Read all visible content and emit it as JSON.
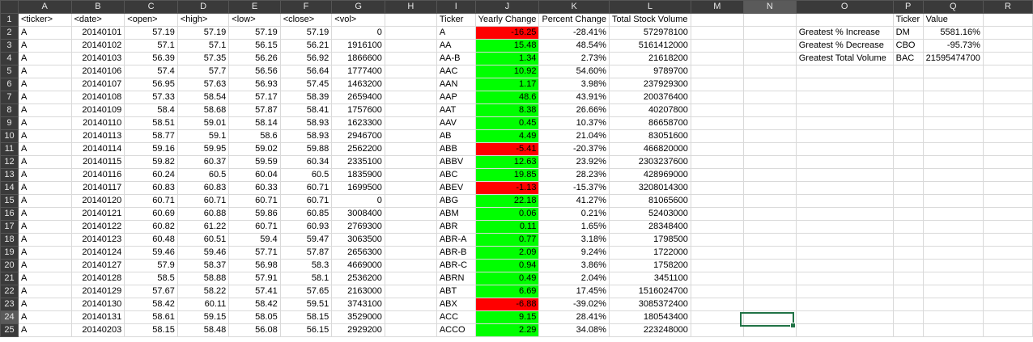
{
  "columns": [
    "A",
    "B",
    "C",
    "D",
    "E",
    "F",
    "G",
    "H",
    "I",
    "J",
    "K",
    "L",
    "M",
    "N",
    "O",
    "P",
    "Q",
    "R"
  ],
  "selected_column": "N",
  "selected_row": 24,
  "colors": {
    "positive": "#00ff00",
    "negative": "#ff0000",
    "selection": "#217346",
    "header_bg": "#3a3a3a"
  },
  "rows": [
    {
      "n": "1",
      "c": [
        "<ticker>",
        "<date>",
        "<open>",
        "<high>",
        "<low>",
        "<close>",
        "<vol>",
        "",
        "Ticker",
        "Yearly Change",
        "Percent Change",
        "Total Stock Volume",
        "",
        "",
        "",
        "Ticker",
        "Value",
        ""
      ]
    },
    {
      "n": "2",
      "c": [
        "A",
        "20140101",
        "57.19",
        "57.19",
        "57.19",
        "57.19",
        "0",
        "",
        "A",
        "-16.25",
        "-28.41%",
        "572978100",
        "",
        "",
        "Greatest % Increase",
        "DM",
        "5581.16%",
        ""
      ]
    },
    {
      "n": "3",
      "c": [
        "A",
        "20140102",
        "57.1",
        "57.1",
        "56.15",
        "56.21",
        "1916100",
        "",
        "AA",
        "15.48",
        "48.54%",
        "5161412000",
        "",
        "",
        "Greatest % Decrease",
        "CBO",
        "-95.73%",
        ""
      ]
    },
    {
      "n": "4",
      "c": [
        "A",
        "20140103",
        "56.39",
        "57.35",
        "56.26",
        "56.92",
        "1866600",
        "",
        "AA-B",
        "1.34",
        "2.73%",
        "21618200",
        "",
        "",
        "Greatest Total Volume",
        "BAC",
        "21595474700",
        ""
      ]
    },
    {
      "n": "5",
      "c": [
        "A",
        "20140106",
        "57.4",
        "57.7",
        "56.56",
        "56.64",
        "1777400",
        "",
        "AAC",
        "10.92",
        "54.60%",
        "9789700",
        "",
        "",
        "",
        "",
        "",
        ""
      ]
    },
    {
      "n": "6",
      "c": [
        "A",
        "20140107",
        "56.95",
        "57.63",
        "56.93",
        "57.45",
        "1463200",
        "",
        "AAN",
        "1.17",
        "3.98%",
        "237929300",
        "",
        "",
        "",
        "",
        "",
        ""
      ]
    },
    {
      "n": "7",
      "c": [
        "A",
        "20140108",
        "57.33",
        "58.54",
        "57.17",
        "58.39",
        "2659400",
        "",
        "AAP",
        "48.6",
        "43.91%",
        "200376400",
        "",
        "",
        "",
        "",
        "",
        ""
      ]
    },
    {
      "n": "8",
      "c": [
        "A",
        "20140109",
        "58.4",
        "58.68",
        "57.87",
        "58.41",
        "1757600",
        "",
        "AAT",
        "8.38",
        "26.66%",
        "40207800",
        "",
        "",
        "",
        "",
        "",
        ""
      ]
    },
    {
      "n": "9",
      "c": [
        "A",
        "20140110",
        "58.51",
        "59.01",
        "58.14",
        "58.93",
        "1623300",
        "",
        "AAV",
        "0.45",
        "10.37%",
        "86658700",
        "",
        "",
        "",
        "",
        "",
        ""
      ]
    },
    {
      "n": "10",
      "c": [
        "A",
        "20140113",
        "58.77",
        "59.1",
        "58.6",
        "58.93",
        "2946700",
        "",
        "AB",
        "4.49",
        "21.04%",
        "83051600",
        "",
        "",
        "",
        "",
        "",
        ""
      ]
    },
    {
      "n": "11",
      "c": [
        "A",
        "20140114",
        "59.16",
        "59.95",
        "59.02",
        "59.88",
        "2562200",
        "",
        "ABB",
        "-5.41",
        "-20.37%",
        "466820000",
        "",
        "",
        "",
        "",
        "",
        ""
      ]
    },
    {
      "n": "12",
      "c": [
        "A",
        "20140115",
        "59.82",
        "60.37",
        "59.59",
        "60.34",
        "2335100",
        "",
        "ABBV",
        "12.63",
        "23.92%",
        "2303237600",
        "",
        "",
        "",
        "",
        "",
        ""
      ]
    },
    {
      "n": "13",
      "c": [
        "A",
        "20140116",
        "60.24",
        "60.5",
        "60.04",
        "60.5",
        "1835900",
        "",
        "ABC",
        "19.85",
        "28.23%",
        "428969000",
        "",
        "",
        "",
        "",
        "",
        ""
      ]
    },
    {
      "n": "14",
      "c": [
        "A",
        "20140117",
        "60.83",
        "60.83",
        "60.33",
        "60.71",
        "1699500",
        "",
        "ABEV",
        "-1.13",
        "-15.37%",
        "3208014300",
        "",
        "",
        "",
        "",
        "",
        ""
      ]
    },
    {
      "n": "15",
      "c": [
        "A",
        "20140120",
        "60.71",
        "60.71",
        "60.71",
        "60.71",
        "0",
        "",
        "ABG",
        "22.18",
        "41.27%",
        "81065600",
        "",
        "",
        "",
        "",
        "",
        ""
      ]
    },
    {
      "n": "16",
      "c": [
        "A",
        "20140121",
        "60.69",
        "60.88",
        "59.86",
        "60.85",
        "3008400",
        "",
        "ABM",
        "0.06",
        "0.21%",
        "52403000",
        "",
        "",
        "",
        "",
        "",
        ""
      ]
    },
    {
      "n": "17",
      "c": [
        "A",
        "20140122",
        "60.82",
        "61.22",
        "60.71",
        "60.93",
        "2769300",
        "",
        "ABR",
        "0.11",
        "1.65%",
        "28348400",
        "",
        "",
        "",
        "",
        "",
        ""
      ]
    },
    {
      "n": "18",
      "c": [
        "A",
        "20140123",
        "60.48",
        "60.51",
        "59.4",
        "59.47",
        "3063500",
        "",
        "ABR-A",
        "0.77",
        "3.18%",
        "1798500",
        "",
        "",
        "",
        "",
        "",
        ""
      ]
    },
    {
      "n": "19",
      "c": [
        "A",
        "20140124",
        "59.46",
        "59.46",
        "57.71",
        "57.87",
        "2656300",
        "",
        "ABR-B",
        "2.09",
        "9.24%",
        "1722000",
        "",
        "",
        "",
        "",
        "",
        ""
      ]
    },
    {
      "n": "20",
      "c": [
        "A",
        "20140127",
        "57.9",
        "58.37",
        "56.98",
        "58.3",
        "4669000",
        "",
        "ABR-C",
        "0.94",
        "3.86%",
        "1758200",
        "",
        "",
        "",
        "",
        "",
        ""
      ]
    },
    {
      "n": "21",
      "c": [
        "A",
        "20140128",
        "58.5",
        "58.88",
        "57.91",
        "58.1",
        "2536200",
        "",
        "ABRN",
        "0.49",
        "2.04%",
        "3451100",
        "",
        "",
        "",
        "",
        "",
        ""
      ]
    },
    {
      "n": "22",
      "c": [
        "A",
        "20140129",
        "57.67",
        "58.22",
        "57.41",
        "57.65",
        "2163000",
        "",
        "ABT",
        "6.69",
        "17.45%",
        "1516024700",
        "",
        "",
        "",
        "",
        "",
        ""
      ]
    },
    {
      "n": "23",
      "c": [
        "A",
        "20140130",
        "58.42",
        "60.11",
        "58.42",
        "59.51",
        "3743100",
        "",
        "ABX",
        "-6.88",
        "-39.02%",
        "3085372400",
        "",
        "",
        "",
        "",
        "",
        ""
      ]
    },
    {
      "n": "24",
      "c": [
        "A",
        "20140131",
        "58.61",
        "59.15",
        "58.05",
        "58.15",
        "3529000",
        "",
        "ACC",
        "9.15",
        "28.41%",
        "180543400",
        "",
        "",
        "",
        "",
        "",
        ""
      ]
    },
    {
      "n": "25",
      "c": [
        "A",
        "20140203",
        "58.15",
        "58.48",
        "56.08",
        "56.15",
        "2929200",
        "",
        "ACCO",
        "2.29",
        "34.08%",
        "223248000",
        "",
        "",
        "",
        "",
        "",
        ""
      ]
    }
  ]
}
